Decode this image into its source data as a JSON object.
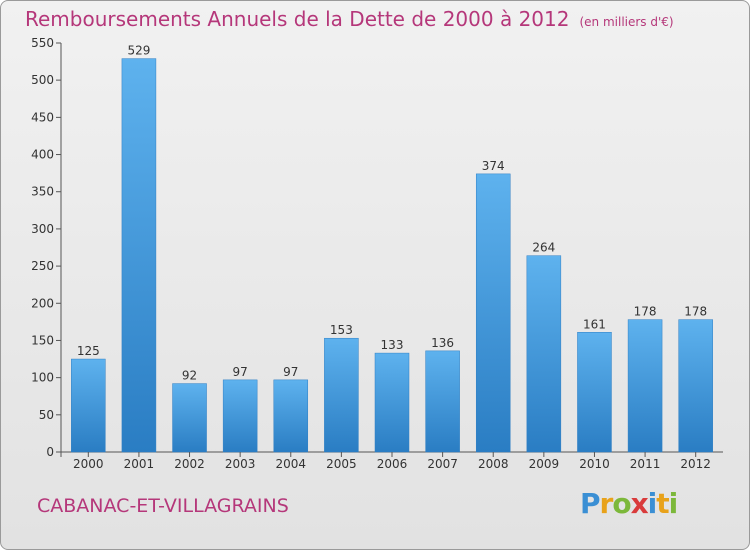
{
  "header": {
    "title": "Remboursements Annuels de la Dette de 2000 à 2012",
    "unit": "(en milliers d'€)"
  },
  "footer": {
    "commune": "CABANAC-ET-VILLAGRAINS",
    "logo": "Proxiti"
  },
  "colors": {
    "bar": "#3b8fd6",
    "title": "#b5377a"
  },
  "chart_data": {
    "type": "bar",
    "title": "Remboursements Annuels de la Dette de 2000 à 2012",
    "xlabel": "",
    "ylabel": "",
    "categories": [
      "2000",
      "2001",
      "2002",
      "2003",
      "2004",
      "2005",
      "2006",
      "2007",
      "2008",
      "2009",
      "2010",
      "2011",
      "2012"
    ],
    "values": [
      125,
      529,
      92,
      97,
      97,
      153,
      133,
      136,
      374,
      264,
      161,
      178,
      178
    ],
    "ylim": [
      0,
      550
    ],
    "yticks": [
      0,
      50,
      100,
      150,
      200,
      250,
      300,
      350,
      400,
      450,
      500,
      550
    ],
    "grid": false,
    "legend": "none"
  }
}
